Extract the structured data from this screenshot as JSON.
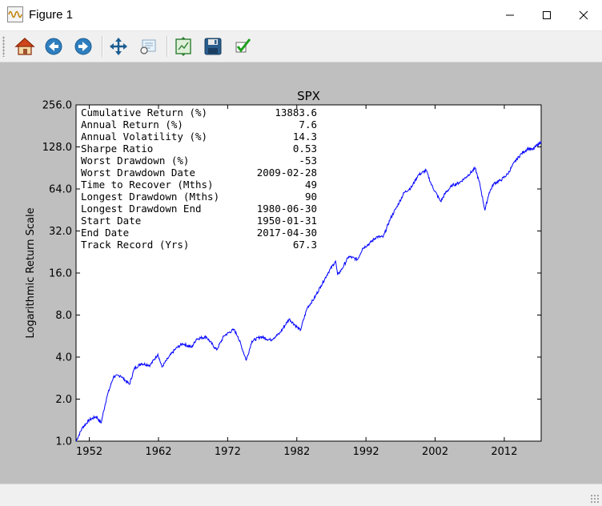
{
  "window": {
    "title": "Figure 1",
    "minimize_icon": "minimize-icon",
    "maximize_icon": "maximize-icon",
    "close_icon": "close-icon"
  },
  "toolbar": {
    "buttons": [
      {
        "name": "home-button",
        "icon": "home-icon"
      },
      {
        "name": "back-button",
        "icon": "back-arrow-icon"
      },
      {
        "name": "forward-button",
        "icon": "forward-arrow-icon"
      },
      {
        "name": "pan-button",
        "icon": "pan-move-icon"
      },
      {
        "name": "zoom-button",
        "icon": "zoom-rectangle-icon"
      },
      {
        "name": "subplots-button",
        "icon": "configure-subplots-icon"
      },
      {
        "name": "save-button",
        "icon": "save-disk-icon"
      },
      {
        "name": "edit-parameters-button",
        "icon": "checkmark-icon"
      }
    ]
  },
  "chart_data": {
    "type": "line",
    "title": "SPX",
    "xlabel": "",
    "ylabel": "Logarithmic Return Scale",
    "y_scale": "log2",
    "ylim": [
      1.0,
      256.0
    ],
    "xlim": [
      1950.08,
      2017.33
    ],
    "y_ticks": [
      "1.0",
      "2.0",
      "4.0",
      "8.0",
      "16.0",
      "32.0",
      "64.0",
      "128.0",
      "256.0"
    ],
    "x_ticks": [
      "1952",
      "1962",
      "1972",
      "1982",
      "1992",
      "2002",
      "2012"
    ],
    "grid": false,
    "line_color": "#0000ff",
    "series": [
      {
        "x": [
          1950.08,
          1951.0,
          1952.0,
          1953.0,
          1953.7,
          1954.5,
          1955.5,
          1956.5,
          1957.8,
          1958.5,
          1959.5,
          1960.8,
          1961.9,
          1962.5,
          1963.5,
          1964.5,
          1965.5,
          1966.8,
          1967.5,
          1968.9,
          1970.4,
          1971.5,
          1972.9,
          1973.5,
          1974.7,
          1975.5,
          1976.8,
          1978.2,
          1979.5,
          1980.9,
          1982.5,
          1983.5,
          1984.5,
          1985.5,
          1986.5,
          1987.6,
          1987.9,
          1988.5,
          1989.5,
          1990.8,
          1991.5,
          1992.5,
          1993.5,
          1994.5,
          1995.5,
          1996.5,
          1997.5,
          1998.6,
          1999.5,
          2000.7,
          2001.5,
          2002.8,
          2003.5,
          2004.5,
          2005.5,
          2006.5,
          2007.8,
          2008.5,
          2009.2,
          2009.8,
          2010.5,
          2011.5,
          2012.5,
          2013.5,
          2014.5,
          2015.5,
          2016.1,
          2016.5,
          2017.33
        ],
        "values": [
          1.0,
          1.25,
          1.42,
          1.5,
          1.35,
          2.05,
          2.9,
          2.95,
          2.55,
          3.3,
          3.6,
          3.5,
          4.2,
          3.4,
          4.0,
          4.6,
          5.0,
          4.7,
          5.4,
          5.6,
          4.5,
          5.7,
          6.3,
          5.6,
          3.8,
          5.2,
          5.6,
          5.3,
          5.9,
          7.5,
          6.2,
          9.0,
          10.5,
          13.0,
          16.0,
          19.5,
          15.5,
          17.0,
          21.0,
          20.0,
          24.0,
          26.0,
          29.0,
          29.0,
          39.0,
          48.0,
          60.0,
          66.0,
          80.0,
          87.0,
          68.0,
          52.0,
          60.0,
          68.0,
          71.0,
          78.0,
          90.0,
          68.0,
          45.0,
          60.0,
          70.0,
          74.0,
          82.0,
          100.0,
          115.0,
          125.0,
          122.0,
          128.0,
          140.0
        ]
      }
    ],
    "stats_table": [
      {
        "label": "Cumulative Return (%)",
        "value": "13883.6"
      },
      {
        "label": "Annual Return (%)",
        "value": "7.6"
      },
      {
        "label": "Annual Volatility (%)",
        "value": "14.3"
      },
      {
        "label": "Sharpe Ratio",
        "value": "0.53"
      },
      {
        "label": "Worst Drawdown (%)",
        "value": "-53"
      },
      {
        "label": "Worst Drawdown Date",
        "value": "2009-02-28"
      },
      {
        "label": "Time to Recover (Mths)",
        "value": "49"
      },
      {
        "label": "Longest Drawdown (Mths)",
        "value": "90"
      },
      {
        "label": "Longest Drawdown End",
        "value": "1980-06-30"
      },
      {
        "label": "Start Date",
        "value": "1950-01-31"
      },
      {
        "label": "End Date",
        "value": "2017-04-30"
      },
      {
        "label": "Track Record (Yrs)",
        "value": "67.3"
      }
    ]
  }
}
